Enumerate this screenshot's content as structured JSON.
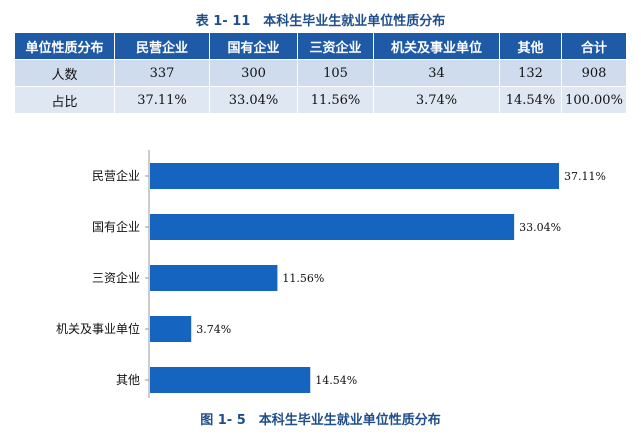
{
  "table": {
    "title": "表 1- 11　本科生毕业生就业单位性质分布",
    "headers": [
      "单位性质分布",
      "民营企业",
      "国有企业",
      "三资企业",
      "机关及事业单位",
      "其他",
      "合计"
    ],
    "rows": [
      [
        "人数",
        "337",
        "300",
        "105",
        "34",
        "132",
        "908"
      ],
      [
        "占比",
        "37.11%",
        "33.04%",
        "11.56%",
        "3.74%",
        "14.54%",
        "100.00%"
      ]
    ]
  },
  "chart_data": {
    "type": "bar",
    "orientation": "horizontal",
    "categories": [
      "民营企业",
      "国有企业",
      "三资企业",
      "机关及事业单位",
      "其他"
    ],
    "values": [
      37.11,
      33.04,
      11.56,
      3.74,
      14.54
    ],
    "value_labels": [
      "37.11%",
      "33.04%",
      "11.56%",
      "3.74%",
      "14.54%"
    ],
    "title": "图 1- 5　本科生毕业生就业单位性质分布",
    "xlim": [
      0,
      37.11
    ],
    "grid": false,
    "color": "#1565c0"
  }
}
